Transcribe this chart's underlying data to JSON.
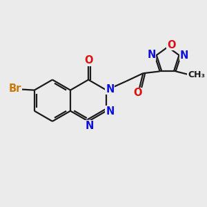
{
  "bg_color": "#ebebeb",
  "bond_color": "#1a1a1a",
  "N_color": "#1010dd",
  "O_color": "#dd1010",
  "Br_color": "#cc7700",
  "line_width": 1.6,
  "figsize": [
    3.0,
    3.0
  ],
  "dpi": 100,
  "xlim": [
    0,
    10
  ],
  "ylim": [
    0,
    10
  ]
}
